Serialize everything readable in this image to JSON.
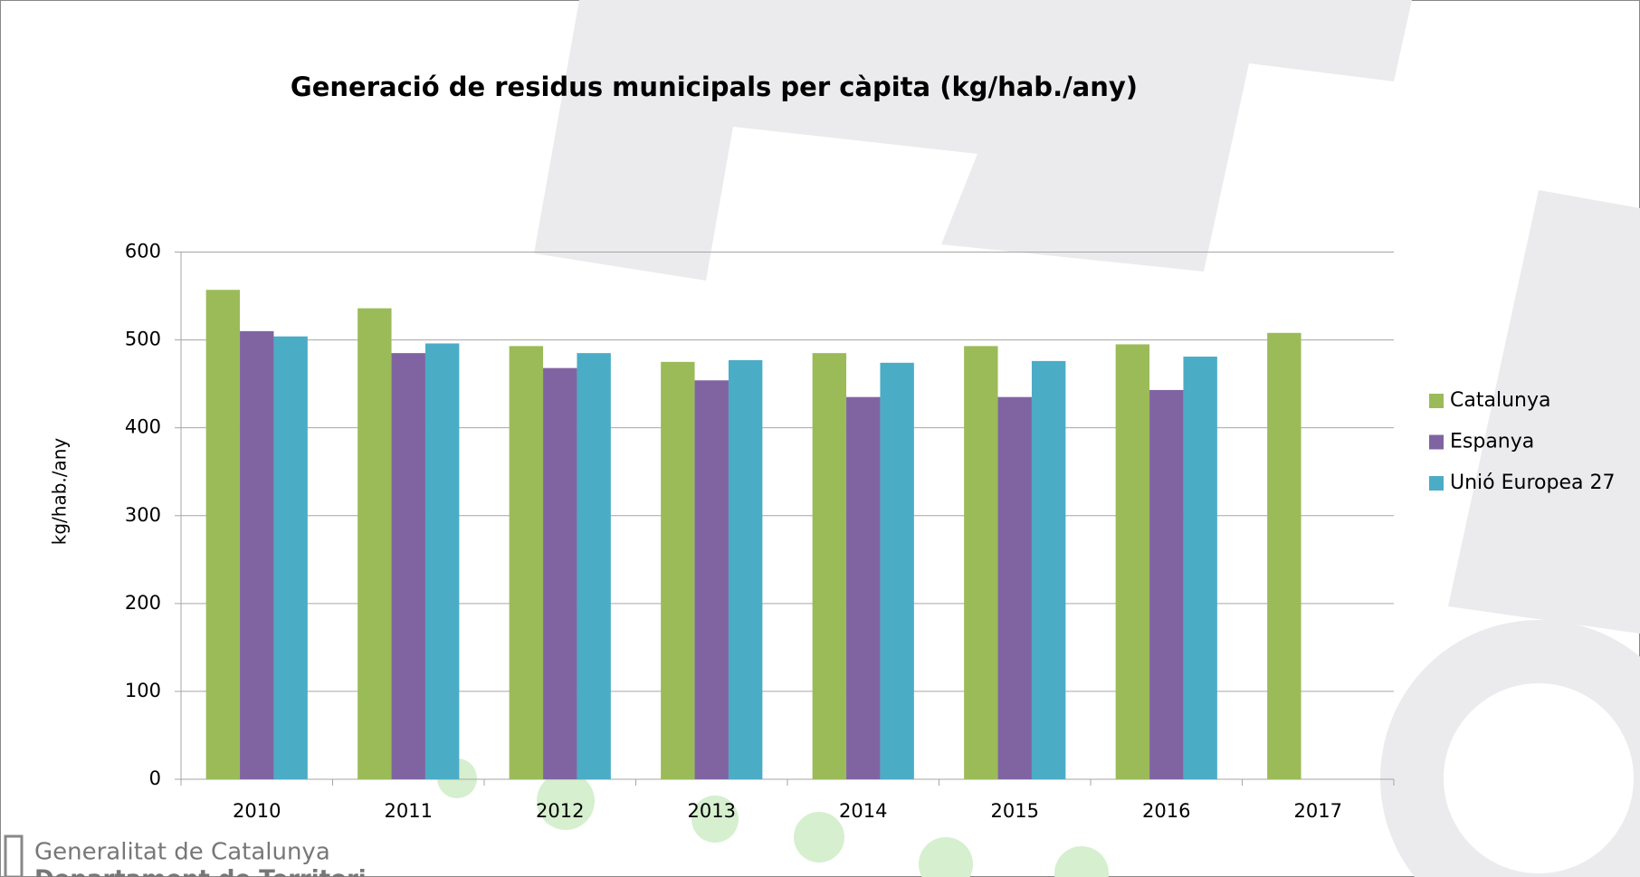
{
  "chart_data": {
    "type": "bar",
    "title": "Generació de residus municipals per càpita (kg/hab./any)",
    "y_label": "kg/hab./any",
    "categories": [
      "2010",
      "2011",
      "2012",
      "2013",
      "2014",
      "2015",
      "2016",
      "2017"
    ],
    "series": [
      {
        "name": "Catalunya",
        "color": "#9bbb59",
        "values": [
          557,
          536,
          493,
          475,
          485,
          493,
          495,
          508
        ]
      },
      {
        "name": "Espanya",
        "color": "#8064a2",
        "values": [
          510,
          485,
          468,
          454,
          435,
          435,
          443,
          null
        ]
      },
      {
        "name": "Unió Europea 27",
        "color": "#4bacc6",
        "values": [
          504,
          496,
          485,
          477,
          474,
          476,
          481,
          null
        ]
      }
    ],
    "ylim": [
      0,
      600
    ],
    "yticks": [
      0,
      100,
      200,
      300,
      400,
      500,
      600
    ],
    "grid": true,
    "legend": "right"
  },
  "logo_text": [
    "Generalitat de Catalunya",
    "Departament de Territori"
  ]
}
